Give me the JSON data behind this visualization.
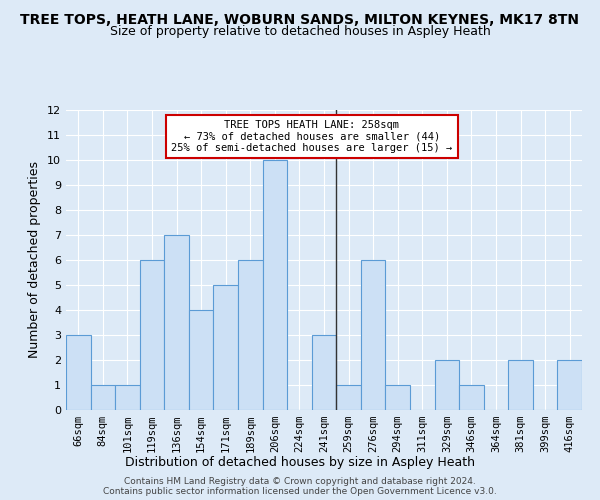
{
  "title": "TREE TOPS, HEATH LANE, WOBURN SANDS, MILTON KEYNES, MK17 8TN",
  "subtitle": "Size of property relative to detached houses in Aspley Heath",
  "xlabel": "Distribution of detached houses by size in Aspley Heath",
  "ylabel": "Number of detached properties",
  "categories": [
    "66sqm",
    "84sqm",
    "101sqm",
    "119sqm",
    "136sqm",
    "154sqm",
    "171sqm",
    "189sqm",
    "206sqm",
    "224sqm",
    "241sqm",
    "259sqm",
    "276sqm",
    "294sqm",
    "311sqm",
    "329sqm",
    "346sqm",
    "364sqm",
    "381sqm",
    "399sqm",
    "416sqm"
  ],
  "values": [
    3,
    1,
    1,
    6,
    7,
    4,
    5,
    6,
    10,
    0,
    3,
    1,
    6,
    1,
    0,
    2,
    1,
    0,
    2,
    0,
    2
  ],
  "bar_color": "#cce0f5",
  "bar_edge_color": "#5b9bd5",
  "vline_x": 10.5,
  "ylim": [
    0,
    12
  ],
  "yticks": [
    0,
    1,
    2,
    3,
    4,
    5,
    6,
    7,
    8,
    9,
    10,
    11,
    12
  ],
  "annotation_text": "TREE TOPS HEATH LANE: 258sqm\n← 73% of detached houses are smaller (44)\n25% of semi-detached houses are larger (15) →",
  "annotation_box_color": "#ffffff",
  "annotation_box_edge": "#cc0000",
  "footer1": "Contains HM Land Registry data © Crown copyright and database right 2024.",
  "footer2": "Contains public sector information licensed under the Open Government Licence v3.0.",
  "background_color": "#ddeaf7",
  "grid_color": "#ffffff",
  "title_fontsize": 10,
  "subtitle_fontsize": 9,
  "tick_fontsize": 7.5
}
